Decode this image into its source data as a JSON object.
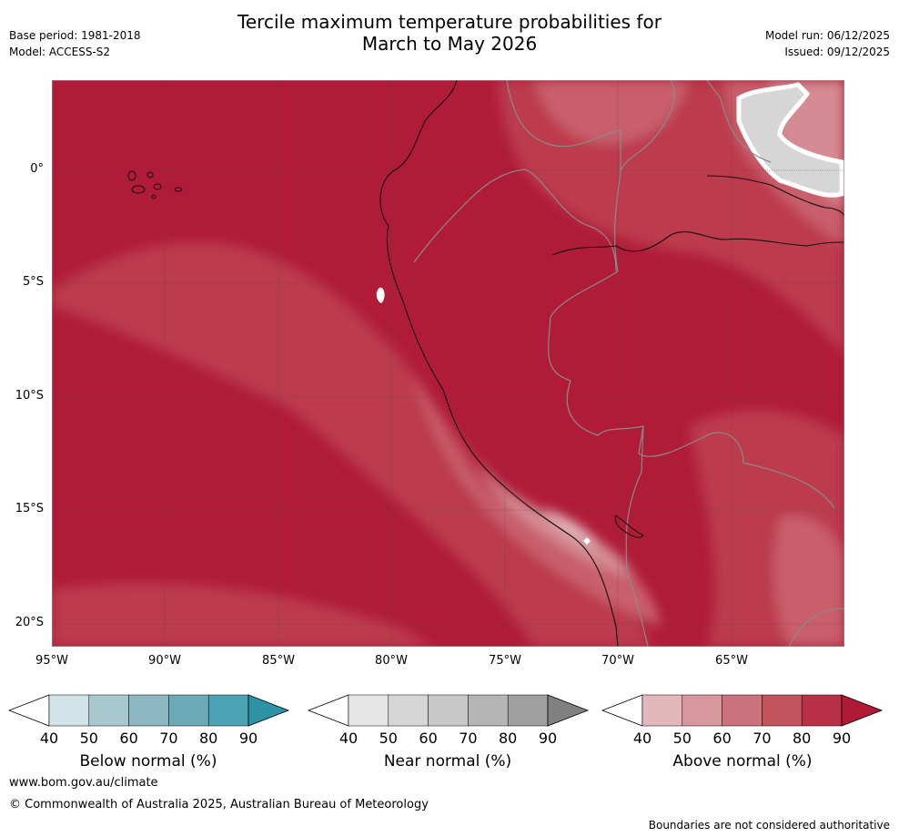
{
  "header": {
    "title_line1": "Tercile maximum temperature probabilities for",
    "title_line2": "March to May 2026",
    "base_period": "Base period: 1981-2018",
    "model": "Model: ACCESS-S2",
    "model_run": "Model run: 06/12/2025",
    "issued": "Issued: 09/12/2025"
  },
  "map": {
    "x_ticks": [
      "95°W",
      "90°W",
      "85°W",
      "80°W",
      "75°W",
      "70°W",
      "65°W"
    ],
    "y_ticks": [
      "0°",
      "5°S",
      "10°S",
      "15°S",
      "20°S"
    ]
  },
  "colorbars": [
    {
      "name": "Below normal (%)",
      "ticks": [
        "40",
        "50",
        "60",
        "70",
        "80",
        "90"
      ],
      "colors": [
        "#cfe3e8",
        "#a8c8cf",
        "#8bb7c2",
        "#6eaab6",
        "#4aa2b2",
        "#2e92a6"
      ]
    },
    {
      "name": "Near normal (%)",
      "ticks": [
        "40",
        "50",
        "60",
        "70",
        "80",
        "90"
      ],
      "colors": [
        "#e6e6e6",
        "#d6d6d6",
        "#c8c8c8",
        "#b5b5b5",
        "#a0a0a0",
        "#808080"
      ]
    },
    {
      "name": "Above normal (%)",
      "ticks": [
        "40",
        "50",
        "60",
        "70",
        "80",
        "90"
      ],
      "colors": [
        "#e2b8bd",
        "#d8969d",
        "#cc727c",
        "#c2535d",
        "#b73046",
        "#b01a37"
      ]
    }
  ],
  "footer": {
    "url": "www.bom.gov.au/climate",
    "copyright": "© Commonwealth of Australia 2025, Australian Bureau of Meteorology",
    "disclaimer": "Boundaries are not considered authoritative"
  }
}
